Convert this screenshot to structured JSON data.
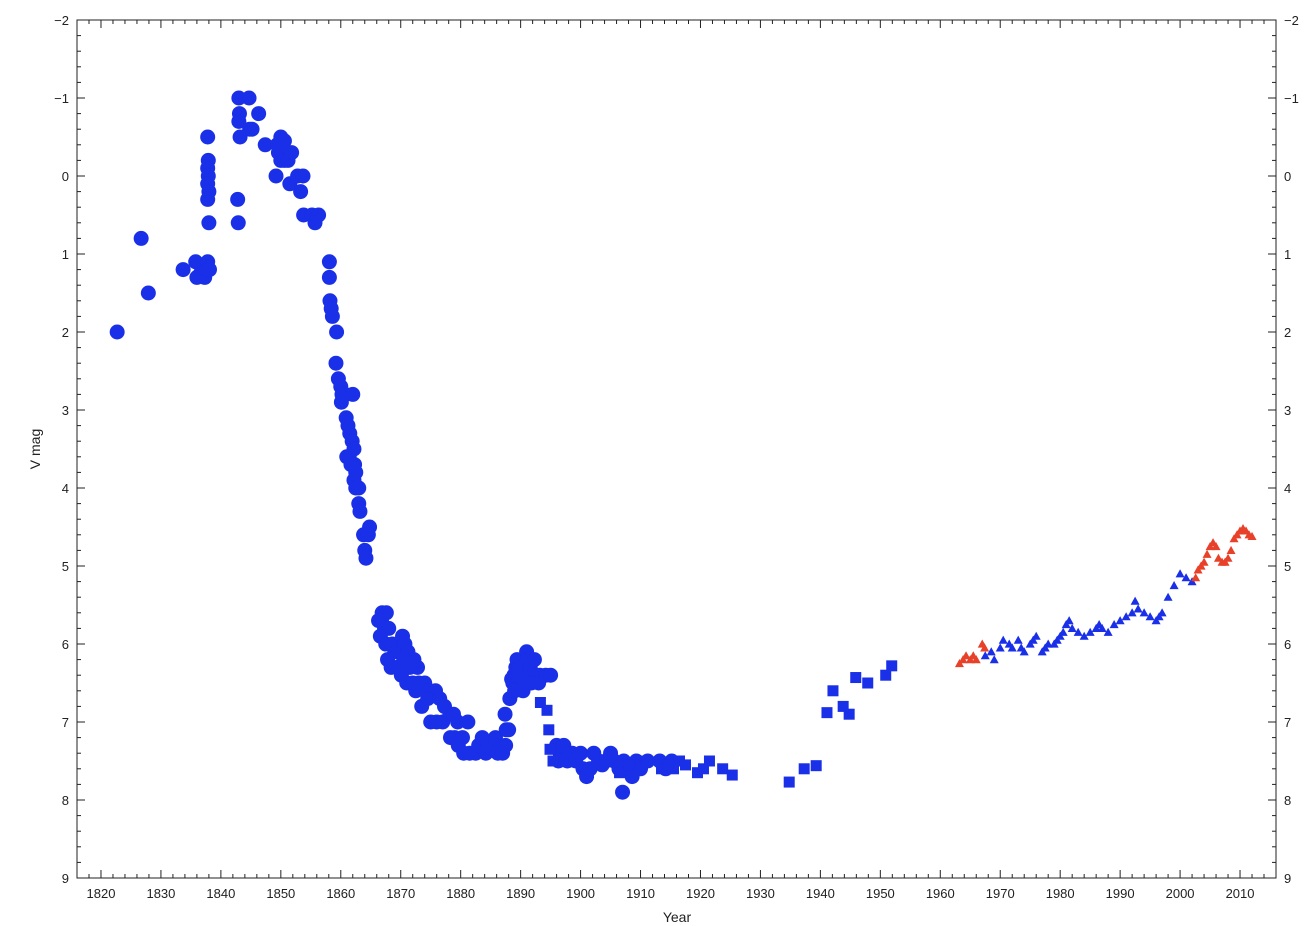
{
  "chart_data": {
    "type": "scatter",
    "xlabel": "Year",
    "ylabel": "V mag",
    "xlim": [
      1816,
      2016
    ],
    "ylim": [
      9,
      -2
    ],
    "y_inverted": true,
    "x_ticks": [
      1820,
      1830,
      1840,
      1850,
      1860,
      1870,
      1880,
      1890,
      1900,
      1910,
      1920,
      1930,
      1940,
      1950,
      1960,
      1970,
      1980,
      1990,
      2000,
      2010
    ],
    "y_ticks": [
      -2,
      -1,
      0,
      1,
      2,
      3,
      4,
      5,
      6,
      7,
      8,
      9
    ],
    "y_tick_labels": [
      "−2",
      "−1",
      "0",
      "1",
      "2",
      "3",
      "4",
      "5",
      "6",
      "7",
      "8",
      "9"
    ],
    "y_labels_right": true,
    "grid": false,
    "series": [
      {
        "marker": "circle",
        "color": "#1a2fe8",
        "points": [
          [
            1822.7,
            2.0
          ],
          [
            1826.7,
            0.8
          ],
          [
            1827.9,
            1.5
          ],
          [
            1833.7,
            1.2
          ],
          [
            1835.8,
            1.1
          ],
          [
            1836.0,
            1.3
          ],
          [
            1836.6,
            1.25
          ],
          [
            1837.0,
            1.15
          ],
          [
            1837.3,
            1.3
          ],
          [
            1837.6,
            1.2
          ],
          [
            1837.8,
            1.1
          ],
          [
            1838.1,
            1.2
          ],
          [
            1837.8,
            -0.5
          ],
          [
            1837.9,
            -0.2
          ],
          [
            1837.8,
            -0.1
          ],
          [
            1837.9,
            0.0
          ],
          [
            1837.8,
            0.1
          ],
          [
            1838.0,
            0.2
          ],
          [
            1837.8,
            0.3
          ],
          [
            1838.0,
            0.6
          ],
          [
            1842.8,
            0.3
          ],
          [
            1842.9,
            0.6
          ],
          [
            1843.0,
            -1.0
          ],
          [
            1843.1,
            -0.8
          ],
          [
            1843.0,
            -0.7
          ],
          [
            1843.2,
            -0.5
          ],
          [
            1844.7,
            -1.0
          ],
          [
            1844.8,
            -0.6
          ],
          [
            1845.2,
            -0.6
          ],
          [
            1846.3,
            -0.8
          ],
          [
            1847.4,
            -0.4
          ],
          [
            1849.2,
            0.0
          ],
          [
            1849.4,
            -0.4
          ],
          [
            1849.6,
            -0.3
          ],
          [
            1850.0,
            -0.5
          ],
          [
            1850.0,
            -0.2
          ],
          [
            1850.3,
            -0.3
          ],
          [
            1850.6,
            -0.45
          ],
          [
            1850.6,
            -0.2
          ],
          [
            1851.2,
            -0.2
          ],
          [
            1851.5,
            0.1
          ],
          [
            1851.8,
            -0.3
          ],
          [
            1852.8,
            0.0
          ],
          [
            1853.3,
            0.2
          ],
          [
            1853.7,
            0.0
          ],
          [
            1853.8,
            0.5
          ],
          [
            1855.2,
            0.5
          ],
          [
            1856.3,
            0.5
          ],
          [
            1855.7,
            0.6
          ],
          [
            1858.1,
            1.1
          ],
          [
            1858.1,
            1.3
          ],
          [
            1858.2,
            1.6
          ],
          [
            1858.4,
            1.7
          ],
          [
            1858.6,
            1.8
          ],
          [
            1859.3,
            2.0
          ],
          [
            1859.2,
            2.4
          ],
          [
            1859.6,
            2.6
          ],
          [
            1860.0,
            2.7
          ],
          [
            1860.2,
            2.8
          ],
          [
            1860.1,
            2.9
          ],
          [
            1860.7,
            2.8
          ],
          [
            1862.0,
            2.8
          ],
          [
            1860.9,
            3.1
          ],
          [
            1861.2,
            3.2
          ],
          [
            1861.5,
            3.3
          ],
          [
            1861.9,
            3.4
          ],
          [
            1862.2,
            3.5
          ],
          [
            1861.0,
            3.6
          ],
          [
            1861.4,
            3.6
          ],
          [
            1861.7,
            3.7
          ],
          [
            1862.3,
            3.7
          ],
          [
            1862.5,
            3.8
          ],
          [
            1862.2,
            3.9
          ],
          [
            1862.5,
            4.0
          ],
          [
            1863.0,
            4.0
          ],
          [
            1863.0,
            4.2
          ],
          [
            1863.2,
            4.3
          ],
          [
            1863.8,
            4.6
          ],
          [
            1864.8,
            4.5
          ],
          [
            1864.6,
            4.6
          ],
          [
            1864.0,
            4.8
          ],
          [
            1864.2,
            4.9
          ],
          [
            1866.3,
            5.7
          ],
          [
            1866.9,
            5.6
          ],
          [
            1867.6,
            5.6
          ],
          [
            1866.8,
            5.7
          ],
          [
            1867.3,
            5.8
          ],
          [
            1868.0,
            5.8
          ],
          [
            1866.6,
            5.9
          ],
          [
            1867.5,
            6.0
          ],
          [
            1868.6,
            6.0
          ],
          [
            1869.0,
            6.1
          ],
          [
            1867.8,
            6.2
          ],
          [
            1868.4,
            6.3
          ],
          [
            1869.4,
            6.3
          ],
          [
            1870.3,
            5.9
          ],
          [
            1870.7,
            6.0
          ],
          [
            1871.2,
            6.1
          ],
          [
            1870.5,
            6.2
          ],
          [
            1871.5,
            6.3
          ],
          [
            1872.2,
            6.2
          ],
          [
            1872.8,
            6.3
          ],
          [
            1870.1,
            6.4
          ],
          [
            1871.0,
            6.5
          ],
          [
            1872.0,
            6.5
          ],
          [
            1873.0,
            6.5
          ],
          [
            1874.0,
            6.5
          ],
          [
            1872.5,
            6.6
          ],
          [
            1874.8,
            6.6
          ],
          [
            1875.8,
            6.6
          ],
          [
            1873.5,
            6.8
          ],
          [
            1874.5,
            6.7
          ],
          [
            1876.5,
            6.7
          ],
          [
            1877.3,
            6.8
          ],
          [
            1875.0,
            7.0
          ],
          [
            1876.0,
            7.0
          ],
          [
            1877.0,
            7.0
          ],
          [
            1878.2,
            6.9
          ],
          [
            1878.8,
            6.9
          ],
          [
            1878.3,
            7.2
          ],
          [
            1879.0,
            7.2
          ],
          [
            1879.5,
            7.0
          ],
          [
            1880.3,
            7.2
          ],
          [
            1881.2,
            7.0
          ],
          [
            1879.6,
            7.3
          ],
          [
            1880.5,
            7.4
          ],
          [
            1881.5,
            7.4
          ],
          [
            1882.5,
            7.4
          ],
          [
            1883.0,
            7.3
          ],
          [
            1883.6,
            7.2
          ],
          [
            1884.2,
            7.4
          ],
          [
            1885.0,
            7.3
          ],
          [
            1885.8,
            7.2
          ],
          [
            1886.6,
            7.3
          ],
          [
            1886.2,
            7.4
          ],
          [
            1887.0,
            7.4
          ],
          [
            1887.5,
            7.3
          ],
          [
            1887.6,
            7.1
          ],
          [
            1887.4,
            6.9
          ],
          [
            1888.0,
            7.1
          ],
          [
            1888.2,
            6.7
          ],
          [
            1888.5,
            6.45
          ],
          [
            1888.7,
            6.5
          ],
          [
            1888.9,
            6.4
          ],
          [
            1889.2,
            6.3
          ],
          [
            1889.4,
            6.2
          ],
          [
            1889.7,
            6.3
          ],
          [
            1890.0,
            6.3
          ],
          [
            1890.3,
            6.4
          ],
          [
            1890.6,
            6.5
          ],
          [
            1891.0,
            6.1
          ],
          [
            1891.3,
            6.2
          ],
          [
            1891.6,
            6.3
          ],
          [
            1892.0,
            6.4
          ],
          [
            1892.3,
            6.2
          ],
          [
            1892.6,
            6.4
          ],
          [
            1893.2,
            6.4
          ],
          [
            1894.2,
            6.4
          ],
          [
            1895.0,
            6.4
          ],
          [
            1889.0,
            6.6
          ],
          [
            1890.4,
            6.6
          ],
          [
            1891.8,
            6.5
          ],
          [
            1893.0,
            6.5
          ],
          [
            1896.0,
            7.3
          ],
          [
            1896.6,
            7.4
          ],
          [
            1897.2,
            7.3
          ],
          [
            1896.3,
            7.5
          ],
          [
            1897.8,
            7.5
          ],
          [
            1898.6,
            7.4
          ],
          [
            1899.2,
            7.5
          ],
          [
            1900.0,
            7.4
          ],
          [
            1900.4,
            7.6
          ],
          [
            1901.0,
            7.7
          ],
          [
            1901.6,
            7.6
          ],
          [
            1902.2,
            7.4
          ],
          [
            1903.0,
            7.5
          ],
          [
            1903.6,
            7.55
          ],
          [
            1904.2,
            7.5
          ],
          [
            1905.0,
            7.4
          ],
          [
            1905.6,
            7.5
          ],
          [
            1906.4,
            7.6
          ],
          [
            1907.2,
            7.5
          ],
          [
            1908.0,
            7.6
          ],
          [
            1908.6,
            7.7
          ],
          [
            1909.3,
            7.5
          ],
          [
            1910.0,
            7.6
          ],
          [
            1911.2,
            7.5
          ],
          [
            1913.2,
            7.5
          ],
          [
            1914.2,
            7.6
          ],
          [
            1915.2,
            7.5
          ],
          [
            1907.0,
            7.9
          ]
        ]
      },
      {
        "marker": "square",
        "color": "#1a2fe8",
        "points": [
          [
            1893.3,
            6.75
          ],
          [
            1894.4,
            6.85
          ],
          [
            1894.7,
            7.1
          ],
          [
            1894.9,
            7.35
          ],
          [
            1895.4,
            7.5
          ],
          [
            1906.5,
            7.65
          ],
          [
            1908.0,
            7.55
          ],
          [
            1911.0,
            7.5
          ],
          [
            1913.5,
            7.6
          ],
          [
            1914.5,
            7.55
          ],
          [
            1915.5,
            7.6
          ],
          [
            1916.5,
            7.5
          ],
          [
            1917.5,
            7.55
          ],
          [
            1919.5,
            7.65
          ],
          [
            1920.5,
            7.6
          ],
          [
            1921.5,
            7.5
          ],
          [
            1923.7,
            7.6
          ],
          [
            1925.3,
            7.68
          ],
          [
            1934.8,
            7.77
          ],
          [
            1937.3,
            7.6
          ],
          [
            1939.3,
            7.56
          ],
          [
            1941.1,
            6.88
          ],
          [
            1942.1,
            6.6
          ],
          [
            1943.8,
            6.8
          ],
          [
            1944.8,
            6.9
          ],
          [
            1945.9,
            6.43
          ],
          [
            1947.9,
            6.5
          ],
          [
            1950.9,
            6.4
          ],
          [
            1951.9,
            6.28
          ]
        ]
      },
      {
        "marker": "triangle",
        "color": "#1a2fe8",
        "points": [
          [
            1967.5,
            6.15
          ],
          [
            1968.5,
            6.1
          ],
          [
            1969.0,
            6.2
          ],
          [
            1970.0,
            6.05
          ],
          [
            1970.5,
            5.95
          ],
          [
            1971.5,
            6.0
          ],
          [
            1972.0,
            6.05
          ],
          [
            1973.0,
            5.95
          ],
          [
            1973.5,
            6.05
          ],
          [
            1974.0,
            6.1
          ],
          [
            1975.0,
            6.0
          ],
          [
            1975.5,
            5.95
          ],
          [
            1976.0,
            5.9
          ],
          [
            1977.0,
            6.1
          ],
          [
            1977.5,
            6.05
          ],
          [
            1978.0,
            6.0
          ],
          [
            1979.0,
            6.0
          ],
          [
            1979.5,
            5.95
          ],
          [
            1980.0,
            5.9
          ],
          [
            1980.5,
            5.85
          ],
          [
            1981.0,
            5.75
          ],
          [
            1981.5,
            5.7
          ],
          [
            1982.0,
            5.8
          ],
          [
            1983.0,
            5.85
          ],
          [
            1984.0,
            5.9
          ],
          [
            1985.0,
            5.85
          ],
          [
            1986.0,
            5.8
          ],
          [
            1986.5,
            5.75
          ],
          [
            1987.0,
            5.8
          ],
          [
            1988.0,
            5.85
          ],
          [
            1989.0,
            5.75
          ],
          [
            1990.0,
            5.7
          ],
          [
            1991.0,
            5.65
          ],
          [
            1992.0,
            5.6
          ],
          [
            1992.5,
            5.45
          ],
          [
            1993.0,
            5.55
          ],
          [
            1994.0,
            5.6
          ],
          [
            1995.0,
            5.65
          ],
          [
            1996.0,
            5.7
          ],
          [
            1996.5,
            5.65
          ],
          [
            1997.0,
            5.6
          ],
          [
            1998.0,
            5.4
          ],
          [
            1999.0,
            5.25
          ],
          [
            2000.0,
            5.1
          ],
          [
            2001.0,
            5.15
          ],
          [
            2002.0,
            5.2
          ]
        ]
      },
      {
        "marker": "triangle",
        "color": "#e8412a",
        "points": [
          [
            1963.2,
            6.25
          ],
          [
            1963.8,
            6.2
          ],
          [
            1964.3,
            6.15
          ],
          [
            1965.0,
            6.2
          ],
          [
            1965.5,
            6.15
          ],
          [
            1966.0,
            6.2
          ],
          [
            1967.0,
            6.0
          ],
          [
            1967.4,
            6.05
          ],
          [
            2002.6,
            5.15
          ],
          [
            2003.0,
            5.05
          ],
          [
            2003.5,
            5.0
          ],
          [
            2004.0,
            4.95
          ],
          [
            2004.5,
            4.85
          ],
          [
            2005.0,
            4.75
          ],
          [
            2005.5,
            4.7
          ],
          [
            2006.0,
            4.75
          ],
          [
            2006.4,
            4.9
          ],
          [
            2007.0,
            4.95
          ],
          [
            2007.5,
            4.95
          ],
          [
            2008.0,
            4.9
          ],
          [
            2008.5,
            4.8
          ],
          [
            2009.0,
            4.65
          ],
          [
            2009.5,
            4.6
          ],
          [
            2010.0,
            4.55
          ],
          [
            2010.5,
            4.52
          ],
          [
            2011.0,
            4.55
          ],
          [
            2011.5,
            4.6
          ],
          [
            2012.0,
            4.62
          ]
        ]
      }
    ]
  }
}
